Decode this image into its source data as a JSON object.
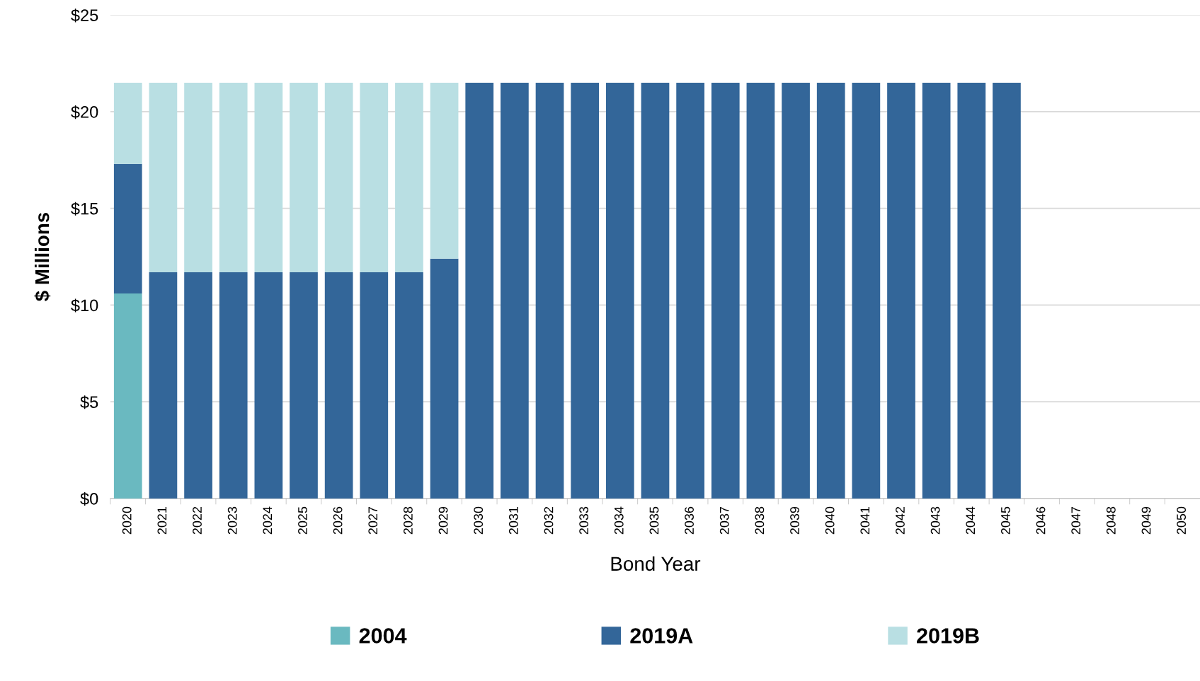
{
  "chart_data": {
    "type": "bar",
    "stacked": true,
    "xlabel": "Bond Year",
    "ylabel": "$ Millions",
    "categories": [
      "2020",
      "2021",
      "2022",
      "2023",
      "2024",
      "2025",
      "2026",
      "2027",
      "2028",
      "2029",
      "2030",
      "2031",
      "2032",
      "2033",
      "2034",
      "2035",
      "2036",
      "2037",
      "2038",
      "2039",
      "2040",
      "2041",
      "2042",
      "2043",
      "2044",
      "2045",
      "2046",
      "2047",
      "2048",
      "2049",
      "2050"
    ],
    "series": [
      {
        "name": "2004",
        "color": "#6ab9c0",
        "values": [
          10.6,
          null,
          null,
          null,
          null,
          null,
          null,
          null,
          null,
          null,
          null,
          null,
          null,
          null,
          null,
          null,
          null,
          null,
          null,
          null,
          null,
          null,
          null,
          null,
          null,
          null,
          null,
          null,
          null,
          null,
          null
        ]
      },
      {
        "name": "2019A",
        "color": "#336699",
        "values": [
          6.7,
          11.7,
          11.7,
          11.7,
          11.7,
          11.7,
          11.7,
          11.7,
          11.7,
          12.4,
          21.5,
          21.5,
          21.5,
          21.5,
          21.5,
          21.5,
          21.5,
          21.5,
          21.5,
          21.5,
          21.5,
          21.5,
          21.5,
          21.5,
          21.5,
          21.5,
          null,
          null,
          null,
          null,
          null
        ]
      },
      {
        "name": "2019B",
        "color": "#b9dfe3",
        "values": [
          4.2,
          9.8,
          9.8,
          9.8,
          9.8,
          9.8,
          9.8,
          9.8,
          9.8,
          9.1,
          null,
          null,
          null,
          null,
          null,
          null,
          null,
          null,
          null,
          null,
          null,
          null,
          null,
          null,
          null,
          null,
          null,
          null,
          null,
          null,
          null
        ]
      }
    ],
    "ylim": [
      0,
      25
    ],
    "yticks": [
      {
        "value": 0,
        "label": "$0"
      },
      {
        "value": 5,
        "label": "$5"
      },
      {
        "value": 10,
        "label": "$10"
      },
      {
        "value": 15,
        "label": "$15"
      },
      {
        "value": 20,
        "label": "$20"
      },
      {
        "value": 25,
        "label": "$25"
      }
    ],
    "grid": "y",
    "legend": "bottom"
  }
}
